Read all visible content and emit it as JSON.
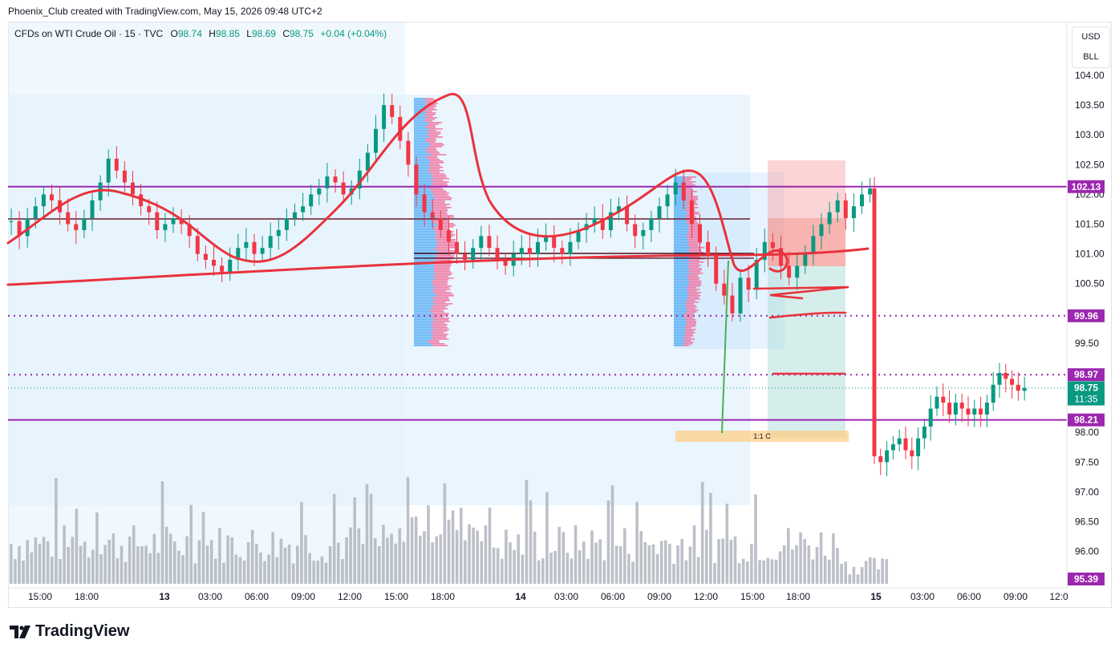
{
  "attribution": "Phoenix_Club created with TradingView.com, May 15, 2026 09:48 UTC+2",
  "legend": {
    "symbol": "CFDs on WTI Crude Oil · 15 · TVC",
    "o_label": "O",
    "o_value": "98.74",
    "h_label": "H",
    "h_value": "98.85",
    "l_label": "L",
    "l_value": "98.69",
    "c_label": "C",
    "c_value": "98.75",
    "change": "+0.04 (+0.04%)"
  },
  "currency": "USD",
  "unit": "BLL",
  "brand": "TradingView",
  "colors": {
    "up": "#089981",
    "down": "#f23645",
    "level": "#9c27b0",
    "curve": "#e8323c",
    "zone": "#e3f2fd"
  },
  "chart_data": {
    "type": "candlestick",
    "ylim": [
      95.39,
      104.2
    ],
    "y_ticks": [
      "104.00",
      "103.50",
      "103.00",
      "102.50",
      "102.00",
      "101.50",
      "101.00",
      "100.50",
      "99.50",
      "98.00",
      "97.50",
      "97.00",
      "96.50",
      "96.00"
    ],
    "x_ticks": [
      "15:00",
      "18:00",
      "13",
      "03:00",
      "06:00",
      "09:00",
      "12:00",
      "15:00",
      "18:00",
      "14",
      "03:00",
      "06:00",
      "09:00",
      "12:00",
      "15:00",
      "18:00",
      "15",
      "03:00",
      "06:00",
      "09:00",
      "12:0"
    ],
    "price_labels": [
      {
        "text": "102.13",
        "value": 102.13,
        "kind": "level"
      },
      {
        "text": "99.96",
        "value": 99.96,
        "kind": "level"
      },
      {
        "text": "98.97",
        "value": 98.97,
        "kind": "level"
      },
      {
        "text": "98.75",
        "sub": "11:35",
        "value": 98.75,
        "kind": "last"
      },
      {
        "text": "98.21",
        "value": 98.21,
        "kind": "level"
      },
      {
        "text": "95.39",
        "value": 95.39,
        "kind": "level"
      }
    ],
    "levels": [
      {
        "value": 102.13,
        "style": "solid"
      },
      {
        "value": 99.96,
        "style": "dotted"
      },
      {
        "value": 98.97,
        "style": "dotted"
      },
      {
        "value": 98.21,
        "style": "solid"
      }
    ],
    "position_label": "1:1 C",
    "series": [
      {
        "name": "WTI close",
        "values": [
          101.55,
          101.3,
          101.6,
          101.8,
          102.0,
          101.9,
          101.7,
          101.5,
          101.4,
          101.6,
          101.9,
          102.2,
          102.6,
          102.4,
          102.2,
          102.0,
          101.8,
          101.7,
          101.4,
          101.5,
          101.6,
          101.5,
          101.3,
          101.0,
          100.9,
          100.8,
          100.7,
          100.9,
          101.1,
          101.2,
          101.0,
          101.1,
          101.3,
          101.4,
          101.6,
          101.7,
          101.8,
          102.0,
          102.1,
          102.3,
          102.2,
          102.0,
          102.1,
          102.4,
          102.7,
          103.1,
          103.5,
          103.3,
          102.9,
          102.5,
          102.0,
          101.7,
          101.6,
          101.4,
          101.2,
          101.0,
          100.9,
          101.1,
          101.3,
          101.1,
          100.9,
          100.8,
          101.0,
          101.1,
          101.0,
          101.2,
          101.3,
          101.1,
          101.0,
          101.2,
          101.4,
          101.5,
          101.6,
          101.4,
          101.7,
          101.8,
          101.5,
          101.3,
          101.4,
          101.6,
          101.8,
          102.0,
          102.2,
          101.9,
          101.5,
          101.2,
          101.0,
          100.5,
          100.3,
          100.0,
          100.6,
          100.4,
          100.9,
          101.2,
          101.1,
          100.8,
          100.6,
          100.8,
          101.0,
          101.3,
          101.5,
          101.7,
          101.9,
          101.6,
          101.8,
          102.0,
          102.1,
          97.6,
          97.5,
          97.7,
          97.8,
          97.9,
          97.7,
          97.6,
          97.9,
          98.1,
          98.4,
          98.6,
          98.5,
          98.3,
          98.5,
          98.4,
          98.3,
          98.4,
          98.3,
          98.5,
          98.8,
          99.0,
          98.9,
          98.8,
          98.7,
          98.75
        ]
      }
    ]
  }
}
